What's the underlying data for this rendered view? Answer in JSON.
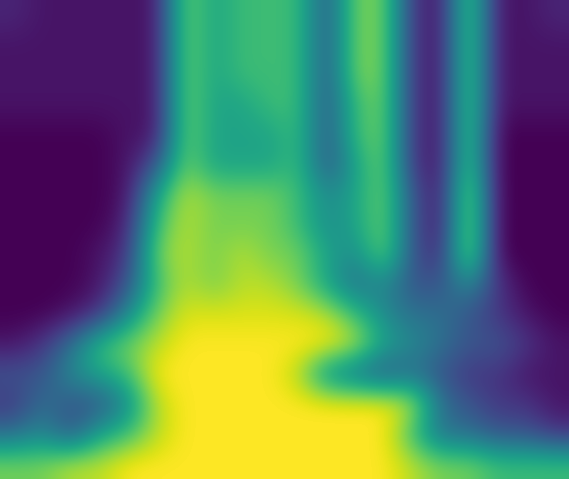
{
  "chart_data": {
    "type": "heatmap",
    "color": "viridis",
    "tick_labels": false,
    "cells": [
      [
        0.15,
        0.1,
        0.1,
        0.1,
        0.1,
        0.1,
        0.8,
        0.6,
        0.7,
        0.7,
        0.7,
        0.3,
        0.8,
        0.8,
        0.2,
        0.1,
        0.8,
        0.1,
        0.1,
        0.15
      ],
      [
        0.1,
        0.1,
        0.1,
        0.1,
        0.1,
        0.1,
        0.8,
        0.6,
        0.7,
        0.7,
        0.7,
        0.3,
        0.8,
        0.8,
        0.2,
        0.1,
        0.8,
        0.1,
        0.1,
        0.1
      ],
      [
        0.1,
        0.1,
        0.1,
        0.1,
        0.1,
        0.1,
        0.8,
        0.6,
        0.7,
        0.7,
        0.7,
        0.3,
        0.8,
        0.8,
        0.2,
        0.1,
        0.8,
        0.1,
        0.1,
        0.1
      ],
      [
        0.1,
        0.1,
        0.1,
        0.1,
        0.1,
        0.1,
        0.8,
        0.6,
        0.6,
        0.7,
        0.7,
        0.3,
        0.7,
        0.8,
        0.2,
        0.1,
        0.8,
        0.1,
        0.1,
        0.1
      ],
      [
        0.05,
        0.05,
        0.05,
        0.05,
        0.1,
        0.1,
        0.8,
        0.6,
        0.6,
        0.6,
        0.7,
        0.3,
        0.7,
        0.8,
        0.2,
        0.1,
        0.8,
        0.05,
        0.05,
        0.05
      ],
      [
        0.05,
        0.05,
        0.05,
        0.05,
        0.1,
        0.3,
        0.8,
        0.6,
        0.6,
        0.6,
        0.7,
        0.3,
        0.6,
        0.8,
        0.2,
        0.1,
        0.8,
        0.05,
        0.05,
        0.05
      ],
      [
        0.05,
        0.05,
        0.05,
        0.05,
        0.1,
        0.6,
        0.9,
        0.8,
        0.8,
        0.8,
        0.7,
        0.5,
        0.6,
        0.8,
        0.3,
        0.1,
        0.9,
        0.05,
        0.05,
        0.05
      ],
      [
        0.05,
        0.05,
        0.05,
        0.05,
        0.15,
        0.7,
        0.9,
        0.8,
        0.8,
        0.8,
        0.7,
        0.5,
        0.6,
        0.8,
        0.3,
        0.1,
        0.9,
        0.05,
        0.05,
        0.05
      ],
      [
        0.05,
        0.05,
        0.05,
        0.1,
        0.2,
        0.8,
        0.9,
        0.8,
        0.9,
        0.8,
        0.8,
        0.6,
        0.5,
        0.8,
        0.3,
        0.15,
        0.9,
        0.05,
        0.05,
        0.05
      ],
      [
        0.05,
        0.05,
        0.05,
        0.1,
        0.3,
        0.7,
        0.9,
        0.8,
        0.9,
        0.9,
        0.8,
        0.6,
        0.4,
        0.5,
        0.3,
        0.3,
        0.5,
        0.2,
        0.05,
        0.05
      ],
      [
        0.05,
        0.05,
        0.1,
        0.2,
        0.5,
        0.8,
        0.95,
        0.95,
        0.95,
        0.95,
        0.95,
        0.9,
        0.7,
        0.5,
        0.4,
        0.4,
        0.3,
        0.2,
        0.1,
        0.05
      ],
      [
        0.1,
        0.2,
        0.4,
        0.7,
        0.8,
        0.9,
        1.0,
        1.0,
        1.0,
        1.0,
        1.0,
        1.0,
        0.9,
        0.6,
        0.5,
        0.4,
        0.3,
        0.3,
        0.2,
        0.1
      ],
      [
        0.3,
        0.3,
        0.5,
        0.6,
        0.7,
        1.0,
        1.0,
        1.0,
        1.0,
        1.0,
        0.9,
        0.5,
        0.4,
        0.3,
        0.4,
        0.3,
        0.2,
        0.2,
        0.1,
        0.1
      ],
      [
        0.2,
        0.4,
        0.3,
        0.3,
        0.5,
        0.9,
        1.0,
        1.0,
        1.0,
        1.0,
        1.0,
        1.0,
        1.0,
        1.0,
        0.9,
        0.4,
        0.3,
        0.2,
        0.2,
        0.1
      ],
      [
        0.4,
        0.5,
        0.3,
        0.6,
        0.7,
        0.9,
        1.0,
        1.0,
        1.0,
        1.0,
        1.0,
        1.0,
        1.0,
        1.0,
        0.7,
        0.4,
        0.4,
        0.3,
        0.3,
        0.2
      ],
      [
        0.8,
        0.8,
        0.9,
        0.9,
        1.0,
        1.0,
        1.0,
        1.0,
        1.0,
        1.0,
        1.0,
        1.0,
        1.0,
        1.0,
        0.9,
        0.8,
        0.8,
        0.7,
        0.7,
        0.7
      ]
    ]
  }
}
